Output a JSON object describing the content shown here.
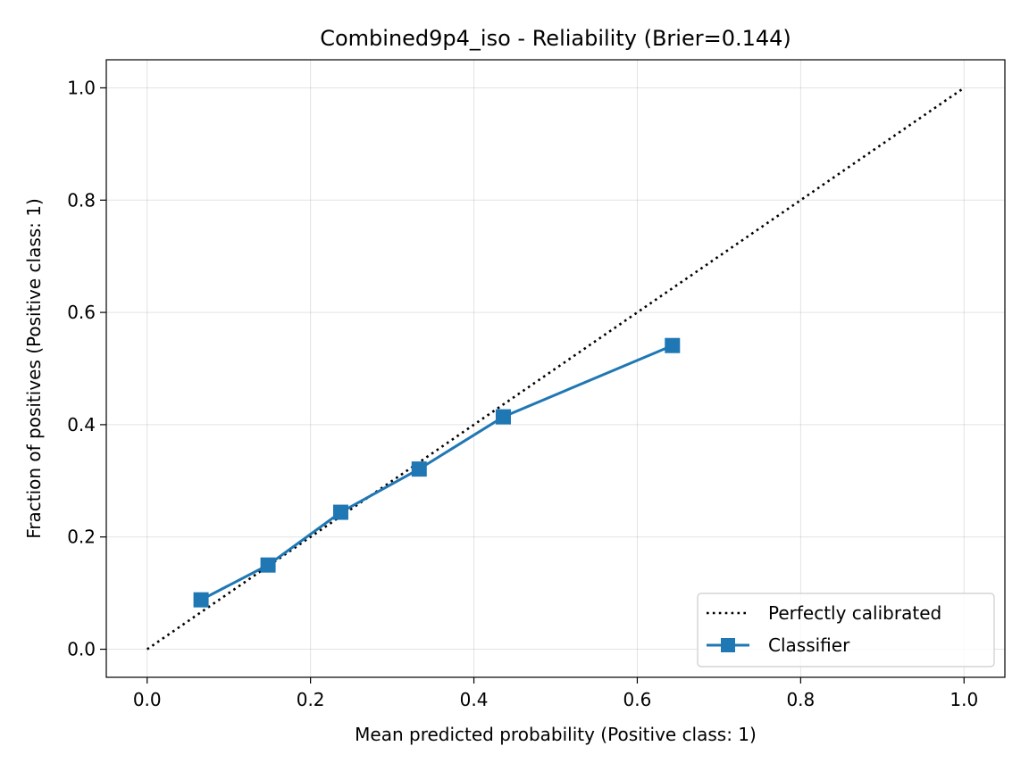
{
  "chart_data": {
    "type": "line",
    "title": "Combined9p4_iso - Reliability (Brier=0.144)",
    "xlabel": "Mean predicted probability (Positive class: 1)",
    "ylabel": "Fraction of positives (Positive class: 1)",
    "xlim": [
      -0.05,
      1.05
    ],
    "ylim": [
      -0.05,
      1.05
    ],
    "xticks": [
      0.0,
      0.2,
      0.4,
      0.6,
      0.8,
      1.0
    ],
    "yticks": [
      0.0,
      0.2,
      0.4,
      0.6,
      0.8,
      1.0
    ],
    "xtick_labels": [
      "0.0",
      "0.2",
      "0.4",
      "0.6",
      "0.8",
      "1.0"
    ],
    "ytick_labels": [
      "0.0",
      "0.2",
      "0.4",
      "0.6",
      "0.8",
      "1.0"
    ],
    "grid": true,
    "legend_position": "bottom-right",
    "series": [
      {
        "name": "Perfectly calibrated",
        "style": "dotted",
        "color": "#000000",
        "x": [
          0.0,
          1.0
        ],
        "y": [
          0.0,
          1.0
        ]
      },
      {
        "name": "Classifier",
        "style": "solid",
        "marker": "square",
        "color": "#1f77b4",
        "x": [
          0.066,
          0.148,
          0.237,
          0.333,
          0.436,
          0.643
        ],
        "y": [
          0.088,
          0.15,
          0.244,
          0.321,
          0.414,
          0.541
        ]
      }
    ]
  }
}
